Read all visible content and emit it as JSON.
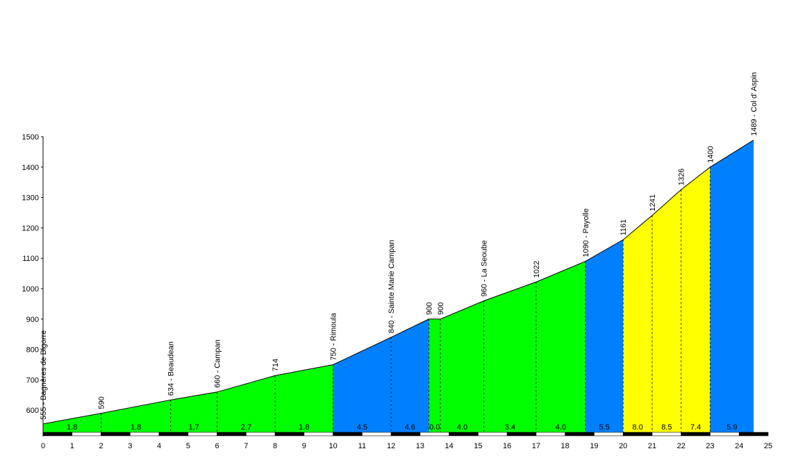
{
  "chart_data": {
    "type": "area",
    "title": "",
    "xlabel": "",
    "ylabel": "",
    "xlim": [
      0,
      25
    ],
    "ylim": [
      520,
      1500
    ],
    "x_ticks": [
      0,
      1,
      2,
      3,
      4,
      5,
      6,
      7,
      8,
      9,
      10,
      11,
      12,
      13,
      14,
      15,
      16,
      17,
      18,
      19,
      20,
      21,
      22,
      23,
      24,
      25
    ],
    "y_ticks": [
      600,
      700,
      800,
      900,
      1000,
      1100,
      1200,
      1300,
      1400,
      1500
    ],
    "profile": [
      {
        "x": 0,
        "y": 555
      },
      {
        "x": 2,
        "y": 590
      },
      {
        "x": 4.4,
        "y": 634
      },
      {
        "x": 6,
        "y": 660
      },
      {
        "x": 8,
        "y": 714
      },
      {
        "x": 10,
        "y": 750
      },
      {
        "x": 12,
        "y": 840
      },
      {
        "x": 13.3,
        "y": 900
      },
      {
        "x": 13.7,
        "y": 900
      },
      {
        "x": 15.2,
        "y": 960
      },
      {
        "x": 17,
        "y": 1022
      },
      {
        "x": 18.7,
        "y": 1090
      },
      {
        "x": 20,
        "y": 1161
      },
      {
        "x": 21,
        "y": 1241
      },
      {
        "x": 22,
        "y": 1326
      },
      {
        "x": 23,
        "y": 1400
      },
      {
        "x": 24.5,
        "y": 1489
      }
    ],
    "point_labels": [
      "555 - Bagnères de Bigorre",
      "590",
      "634 - Beaudean",
      "660 - Campan",
      "714",
      "750 - Rimoula",
      "840 - Sainte Marie Campan",
      "900",
      "900",
      "960 - La Seoube",
      "1022",
      "1090 - Payolle",
      "1161",
      "1241",
      "1326",
      "1400",
      "1489 - Col d' Aspin"
    ],
    "segments": [
      {
        "label": "1.8",
        "color": "green"
      },
      {
        "label": "1.8",
        "color": "green"
      },
      {
        "label": "1.7",
        "color": "green"
      },
      {
        "label": "2.7",
        "color": "green"
      },
      {
        "label": "1.8",
        "color": "green"
      },
      {
        "label": "4.5",
        "color": "blue"
      },
      {
        "label": "4.6",
        "color": "blue"
      },
      {
        "label": "0.0",
        "color": "green"
      },
      {
        "label": "4.0",
        "color": "green"
      },
      {
        "label": "3.4",
        "color": "green"
      },
      {
        "label": "4.0",
        "color": "green"
      },
      {
        "label": "5.5",
        "color": "blue"
      },
      {
        "label": "8.0",
        "color": "yellow"
      },
      {
        "label": "8.5",
        "color": "yellow"
      },
      {
        "label": "7.4",
        "color": "yellow"
      },
      {
        "label": "5.9",
        "color": "blue"
      }
    ],
    "colors": {
      "green": "#00ff00",
      "blue": "#0080ff",
      "yellow": "#ffff00",
      "line": "#000000"
    },
    "grid": false,
    "legend": "none"
  }
}
